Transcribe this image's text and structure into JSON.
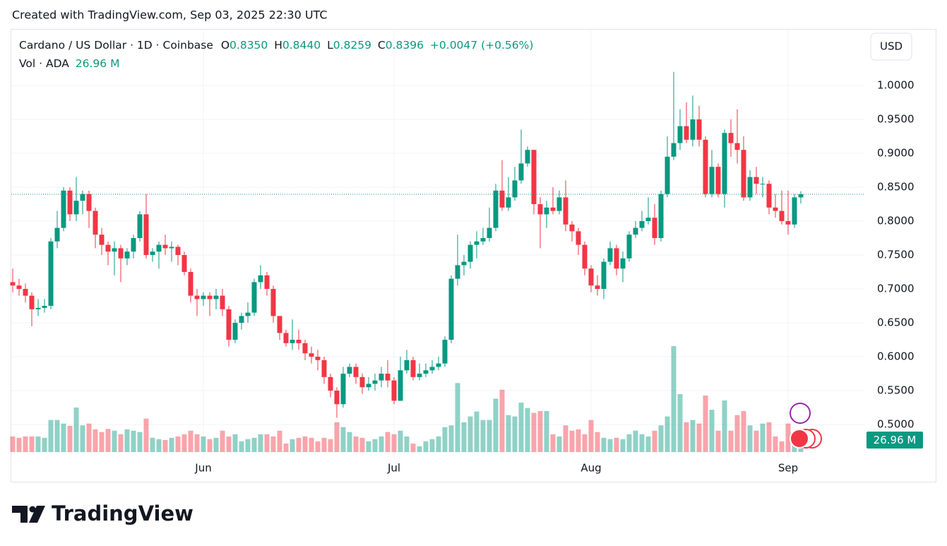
{
  "created": "Created with TradingView.com, Sep 03, 2025 22:30 UTC",
  "brand": "TradingView",
  "currency": "USD",
  "header": {
    "symbol": "Cardano / US Dollar · 1D · Coinbase",
    "open_label": "O",
    "open": "0.8350",
    "high_label": "H",
    "high": "0.8440",
    "low_label": "L",
    "low": "0.8259",
    "close_label": "C",
    "close": "0.8396",
    "change": "+0.0047 (+0.56%)"
  },
  "chart_data": {
    "type": "candlestick",
    "up_color": "#089981",
    "down_color": "#f23645",
    "grid": true,
    "ylim": [
      0.4542,
      1.0823
    ],
    "yticks": [
      {
        "value": 0.5,
        "label": "0.5000"
      },
      {
        "value": 0.55,
        "label": "0.5500"
      },
      {
        "value": 0.6,
        "label": "0.6000"
      },
      {
        "value": 0.65,
        "label": "0.6500"
      },
      {
        "value": 0.7,
        "label": "0.7000"
      },
      {
        "value": 0.75,
        "label": "0.7500"
      },
      {
        "value": 0.8,
        "label": "0.8000"
      },
      {
        "value": 0.85,
        "label": "0.8500"
      },
      {
        "value": 0.9,
        "label": "0.9000"
      },
      {
        "value": 0.95,
        "label": "0.9500"
      },
      {
        "value": 1,
        "label": "1.0000"
      }
    ],
    "categories": [
      null,
      null,
      null,
      null,
      null,
      null,
      null,
      null,
      null,
      null,
      null,
      null,
      null,
      null,
      null,
      null,
      null,
      null,
      null,
      null,
      null,
      null,
      null,
      null,
      null,
      null,
      null,
      null,
      null,
      null,
      "Jun",
      null,
      null,
      null,
      null,
      null,
      null,
      null,
      null,
      null,
      null,
      null,
      null,
      null,
      null,
      null,
      null,
      null,
      null,
      null,
      null,
      null,
      null,
      null,
      null,
      null,
      null,
      null,
      null,
      null,
      "Jul",
      null,
      null,
      null,
      null,
      null,
      null,
      null,
      null,
      null,
      null,
      null,
      null,
      null,
      null,
      null,
      null,
      null,
      null,
      null,
      null,
      null,
      null,
      null,
      null,
      null,
      null,
      null,
      null,
      null,
      null,
      "Aug",
      null,
      null,
      null,
      null,
      null,
      null,
      null,
      null,
      null,
      null,
      null,
      null,
      null,
      null,
      null,
      null,
      null,
      null,
      null,
      null,
      null,
      null,
      null,
      null,
      null,
      null,
      null,
      null,
      null,
      null,
      "Sep",
      null,
      null
    ],
    "open": [
      0.71,
      0.705,
      0.7,
      0.69,
      0.67,
      0.672,
      0.675,
      0.77,
      0.79,
      0.845,
      0.81,
      0.83,
      0.84,
      0.815,
      0.78,
      0.765,
      0.755,
      0.76,
      0.745,
      0.755,
      0.775,
      0.81,
      0.75,
      0.755,
      0.765,
      0.76,
      0.762,
      0.75,
      0.725,
      0.69,
      0.685,
      0.69,
      0.685,
      0.69,
      0.67,
      0.625,
      0.65,
      0.66,
      0.665,
      0.71,
      0.72,
      0.7,
      0.66,
      0.635,
      0.62,
      0.625,
      0.62,
      0.605,
      0.6,
      0.595,
      0.57,
      0.55,
      0.53,
      0.575,
      0.585,
      0.57,
      0.555,
      0.56,
      0.565,
      0.575,
      0.565,
      0.535,
      0.58,
      0.595,
      0.57,
      0.575,
      0.58,
      0.585,
      0.59,
      0.625,
      0.715,
      0.735,
      0.74,
      0.765,
      0.77,
      0.775,
      0.79,
      0.845,
      0.82,
      0.835,
      0.86,
      0.885,
      0.905,
      0.825,
      0.81,
      0.82,
      0.815,
      0.835,
      0.795,
      0.785,
      0.765,
      0.73,
      0.705,
      0.7,
      0.74,
      0.76,
      0.73,
      0.745,
      0.78,
      0.79,
      0.8,
      0.805,
      0.775,
      0.84,
      0.895,
      0.915,
      0.94,
      0.92,
      0.95,
      0.92,
      0.84,
      0.88,
      0.84,
      0.93,
      0.915,
      0.905,
      0.835,
      0.865,
      0.855,
      0.855,
      0.82,
      0.815,
      0.8,
      0.795,
      0.835
    ],
    "high": [
      0.73,
      0.715,
      0.708,
      0.695,
      0.685,
      0.685,
      0.775,
      0.815,
      0.85,
      0.85,
      0.865,
      0.845,
      0.845,
      0.82,
      0.79,
      0.77,
      0.77,
      0.765,
      0.76,
      0.78,
      0.815,
      0.84,
      0.76,
      0.77,
      0.78,
      0.77,
      0.765,
      0.755,
      0.73,
      0.7,
      0.695,
      0.695,
      0.7,
      0.7,
      0.675,
      0.655,
      0.665,
      0.68,
      0.715,
      0.735,
      0.725,
      0.705,
      0.66,
      0.64,
      0.655,
      0.64,
      0.625,
      0.615,
      0.61,
      0.6,
      0.575,
      0.555,
      0.585,
      0.59,
      0.59,
      0.575,
      0.57,
      0.575,
      0.585,
      0.595,
      0.57,
      0.6,
      0.61,
      0.6,
      0.59,
      0.59,
      0.595,
      0.6,
      0.63,
      0.72,
      0.78,
      0.75,
      0.77,
      0.785,
      0.79,
      0.82,
      0.855,
      0.89,
      0.865,
      0.88,
      0.935,
      0.91,
      0.905,
      0.835,
      0.83,
      0.85,
      0.845,
      0.86,
      0.8,
      0.79,
      0.77,
      0.735,
      0.72,
      0.745,
      0.77,
      0.765,
      0.755,
      0.785,
      0.8,
      0.815,
      0.835,
      0.825,
      0.845,
      0.925,
      1.02,
      0.965,
      0.975,
      0.985,
      0.97,
      0.925,
      0.905,
      0.885,
      0.935,
      0.95,
      0.965,
      0.925,
      0.875,
      0.88,
      0.865,
      0.86,
      0.84,
      0.845,
      0.845,
      0.84,
      0.844
    ],
    "low": [
      0.695,
      0.69,
      0.68,
      0.645,
      0.66,
      0.665,
      0.67,
      0.76,
      0.785,
      0.8,
      0.8,
      0.81,
      0.79,
      0.76,
      0.75,
      0.735,
      0.72,
      0.71,
      0.735,
      0.745,
      0.77,
      0.745,
      0.74,
      0.73,
      0.75,
      0.74,
      0.735,
      0.72,
      0.68,
      0.66,
      0.675,
      0.66,
      0.67,
      0.66,
      0.615,
      0.62,
      0.64,
      0.65,
      0.66,
      0.7,
      0.69,
      0.65,
      0.625,
      0.615,
      0.61,
      0.61,
      0.595,
      0.59,
      0.58,
      0.56,
      0.54,
      0.51,
      0.525,
      0.57,
      0.56,
      0.545,
      0.55,
      0.55,
      0.555,
      0.555,
      0.53,
      0.535,
      0.575,
      0.565,
      0.565,
      0.57,
      0.575,
      0.58,
      0.585,
      0.62,
      0.705,
      0.72,
      0.73,
      0.745,
      0.765,
      0.77,
      0.785,
      0.815,
      0.815,
      0.83,
      0.855,
      0.88,
      0.81,
      0.76,
      0.79,
      0.81,
      0.81,
      0.785,
      0.77,
      0.75,
      0.72,
      0.695,
      0.69,
      0.685,
      0.735,
      0.72,
      0.71,
      0.74,
      0.775,
      0.785,
      0.795,
      0.765,
      0.77,
      0.835,
      0.89,
      0.905,
      0.915,
      0.91,
      0.91,
      0.835,
      0.835,
      0.835,
      0.82,
      0.895,
      0.885,
      0.83,
      0.83,
      0.84,
      0.835,
      0.81,
      0.805,
      0.795,
      0.78,
      0.79,
      0.8259
    ],
    "close": [
      0.705,
      0.7,
      0.69,
      0.67,
      0.672,
      0.675,
      0.77,
      0.79,
      0.845,
      0.81,
      0.83,
      0.84,
      0.815,
      0.78,
      0.765,
      0.755,
      0.76,
      0.745,
      0.755,
      0.775,
      0.81,
      0.75,
      0.755,
      0.765,
      0.76,
      0.762,
      0.75,
      0.725,
      0.69,
      0.685,
      0.69,
      0.685,
      0.69,
      0.67,
      0.625,
      0.65,
      0.66,
      0.665,
      0.71,
      0.72,
      0.7,
      0.66,
      0.635,
      0.62,
      0.625,
      0.62,
      0.605,
      0.6,
      0.595,
      0.57,
      0.55,
      0.53,
      0.575,
      0.585,
      0.57,
      0.555,
      0.56,
      0.565,
      0.575,
      0.565,
      0.535,
      0.58,
      0.595,
      0.57,
      0.575,
      0.58,
      0.585,
      0.59,
      0.625,
      0.715,
      0.735,
      0.74,
      0.765,
      0.77,
      0.775,
      0.79,
      0.845,
      0.82,
      0.835,
      0.86,
      0.885,
      0.905,
      0.825,
      0.81,
      0.82,
      0.815,
      0.835,
      0.795,
      0.785,
      0.765,
      0.73,
      0.705,
      0.7,
      0.74,
      0.76,
      0.73,
      0.745,
      0.78,
      0.79,
      0.8,
      0.805,
      0.775,
      0.84,
      0.895,
      0.915,
      0.94,
      0.92,
      0.95,
      0.92,
      0.84,
      0.88,
      0.84,
      0.93,
      0.915,
      0.905,
      0.835,
      0.865,
      0.855,
      0.855,
      0.82,
      0.815,
      0.8,
      0.795,
      0.835,
      0.8396
    ],
    "volume": {
      "name": "Vol · ADA",
      "last_label": "26.96 M",
      "values": [
        35,
        32,
        35,
        35,
        35,
        32,
        72,
        72,
        64,
        59,
        100,
        60,
        64,
        51,
        45,
        52,
        48,
        40,
        51,
        48,
        45,
        75,
        32,
        29,
        27,
        32,
        35,
        40,
        48,
        40,
        35,
        29,
        32,
        48,
        35,
        40,
        24,
        29,
        32,
        40,
        40,
        35,
        48,
        19,
        29,
        32,
        35,
        32,
        24,
        32,
        29,
        67,
        56,
        45,
        35,
        32,
        24,
        29,
        35,
        45,
        40,
        48,
        35,
        19,
        13,
        24,
        29,
        35,
        56,
        60,
        155,
        67,
        80,
        91,
        72,
        72,
        120,
        140,
        83,
        80,
        111,
        99,
        88,
        92,
        92,
        40,
        35,
        60,
        48,
        51,
        40,
        72,
        45,
        32,
        29,
        32,
        29,
        40,
        48,
        40,
        35,
        48,
        60,
        80,
        238,
        130,
        67,
        72,
        64,
        127,
        95,
        48,
        116,
        48,
        83,
        92,
        60,
        48,
        64,
        67,
        35,
        24,
        64,
        32,
        26.96
      ]
    }
  }
}
